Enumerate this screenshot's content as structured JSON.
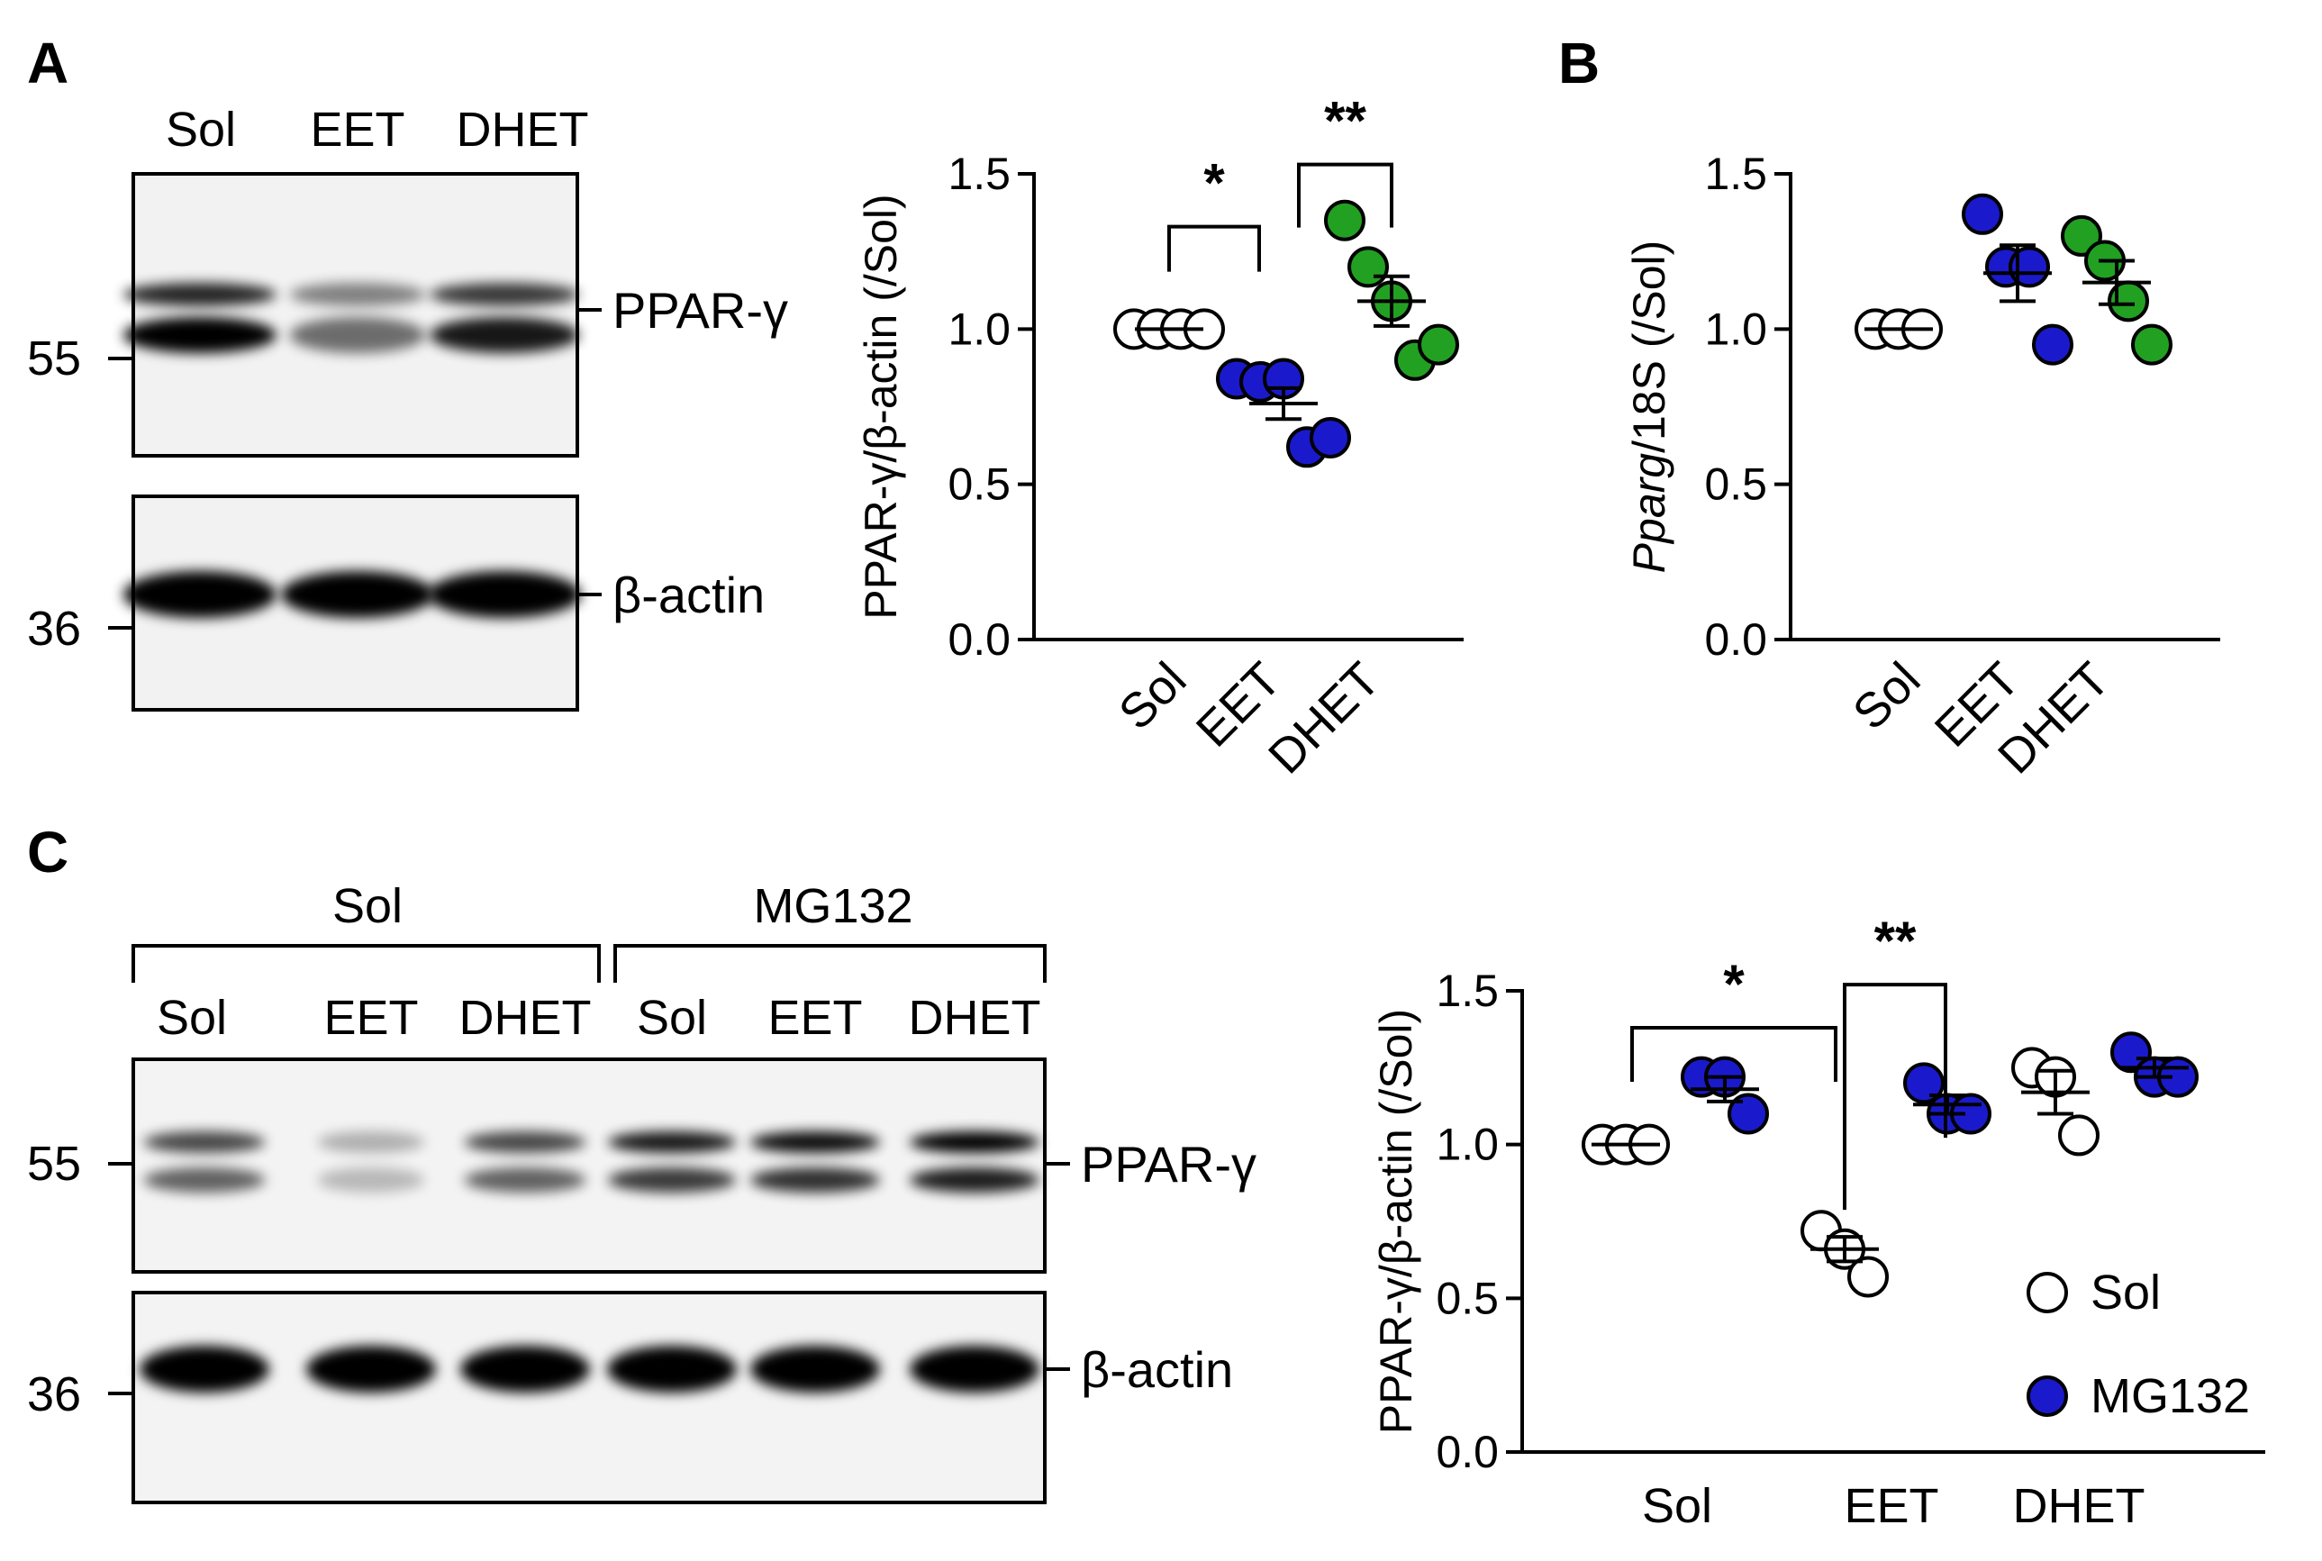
{
  "panels": {
    "A": {
      "letter": "A",
      "blot": {
        "lanes": [
          "Sol",
          "EET",
          "DHET"
        ],
        "mw_markers": [
          "55",
          "36"
        ],
        "band_labels": [
          "PPAR-γ",
          "β-actin"
        ],
        "ppar_band_intensity": [
          1.0,
          0.55,
          0.9
        ],
        "actin_band_intensity": [
          1.0,
          1.0,
          1.0
        ]
      }
    },
    "B": {
      "letter": "B"
    },
    "C": {
      "letter": "C",
      "blot": {
        "group_labels": [
          "Sol",
          "MG132"
        ],
        "lanes": [
          "Sol",
          "EET",
          "DHET",
          "Sol",
          "EET",
          "DHET"
        ],
        "mw_markers": [
          "55",
          "36"
        ],
        "band_labels": [
          "PPAR-γ",
          "β-actin"
        ],
        "ppar_band_intensity": [
          0.75,
          0.3,
          0.75,
          0.95,
          1.0,
          1.1
        ],
        "actin_band_intensity": [
          1.0,
          1.0,
          1.0,
          1.0,
          1.0,
          1.0
        ]
      }
    }
  },
  "colors": {
    "eet": "#1a1acc",
    "dhet": "#22a022",
    "sol": "#ffffff",
    "mg132": "#1a1acc"
  },
  "chart_data": [
    {
      "id": "A",
      "type": "scatter",
      "ylabel": "PPAR-γ/β-actin (/Sol)",
      "ylim": [
        0,
        1.5
      ],
      "yticks": [
        "0.0",
        "0.5",
        "1.0",
        "1.5"
      ],
      "categories": [
        "Sol",
        "EET",
        "DHET"
      ],
      "groups": [
        {
          "category": "Sol",
          "color_key": "sol",
          "points": [
            1.0,
            1.0,
            1.0,
            1.0
          ],
          "mean": 1.0,
          "sem": 0.0
        },
        {
          "category": "EET",
          "color_key": "eet",
          "points": [
            0.84,
            0.83,
            0.84,
            0.62,
            0.65
          ],
          "mean": 0.76,
          "sem": 0.05
        },
        {
          "category": "DHET",
          "color_key": "dhet",
          "points": [
            1.35,
            1.2,
            1.09,
            0.9,
            0.95
          ],
          "mean": 1.09,
          "sem": 0.08
        }
      ],
      "significance": [
        {
          "from": "Sol",
          "to": "EET",
          "label": "*",
          "level": 1.33
        },
        {
          "from": "EET",
          "to": "DHET",
          "label": "**",
          "level": 1.53
        }
      ]
    },
    {
      "id": "B",
      "type": "scatter",
      "ylabel_italic": "Pparg",
      "ylabel_rest": "/18S (/Sol)",
      "ylim": [
        0,
        1.5
      ],
      "yticks": [
        "0.0",
        "0.5",
        "1.0",
        "1.5"
      ],
      "categories": [
        "Sol",
        "EET",
        "DHET"
      ],
      "groups": [
        {
          "category": "Sol",
          "color_key": "sol",
          "points": [
            1.0,
            1.0,
            1.0
          ],
          "mean": 1.0,
          "sem": 0.0
        },
        {
          "category": "EET",
          "color_key": "eet",
          "points": [
            1.37,
            1.2,
            1.2,
            0.95
          ],
          "mean": 1.18,
          "sem": 0.09
        },
        {
          "category": "DHET",
          "color_key": "dhet",
          "points": [
            1.3,
            1.22,
            1.09,
            0.95
          ],
          "mean": 1.15,
          "sem": 0.07
        }
      ]
    },
    {
      "id": "C",
      "type": "scatter",
      "ylabel": "PPAR-γ/β-actin (/Sol)",
      "ylim": [
        0,
        1.5
      ],
      "yticks": [
        "0.0",
        "0.5",
        "1.0",
        "1.5"
      ],
      "categories": [
        "Sol",
        "EET",
        "DHET"
      ],
      "series": [
        {
          "name": "Sol",
          "color_key": "sol"
        },
        {
          "name": "MG132",
          "color_key": "mg132"
        }
      ],
      "groups": [
        {
          "category": "Sol",
          "series": "Sol",
          "points": [
            1.0,
            1.0,
            1.0
          ],
          "mean": 1.0,
          "sem": 0.0
        },
        {
          "category": "Sol",
          "series": "MG132",
          "points": [
            1.22,
            1.22,
            1.1
          ],
          "mean": 1.18,
          "sem": 0.04
        },
        {
          "category": "EET",
          "series": "Sol",
          "points": [
            0.72,
            0.66,
            0.57
          ],
          "mean": 0.66,
          "sem": 0.04
        },
        {
          "category": "EET",
          "series": "MG132",
          "points": [
            1.2,
            1.1,
            1.1
          ],
          "mean": 1.13,
          "sem": 0.03
        },
        {
          "category": "DHET",
          "series": "Sol",
          "points": [
            1.25,
            1.22,
            1.03
          ],
          "mean": 1.17,
          "sem": 0.07
        },
        {
          "category": "DHET",
          "series": "MG132",
          "points": [
            1.3,
            1.22,
            1.22
          ],
          "mean": 1.25,
          "sem": 0.03
        }
      ],
      "significance": [
        {
          "from": "Sol",
          "to": "EET",
          "label": "*",
          "level": 1.38
        },
        {
          "from": "EET",
          "to": "EET-MG132",
          "label": "**",
          "level": 1.52
        }
      ],
      "legend": [
        "Sol",
        "MG132"
      ]
    }
  ]
}
